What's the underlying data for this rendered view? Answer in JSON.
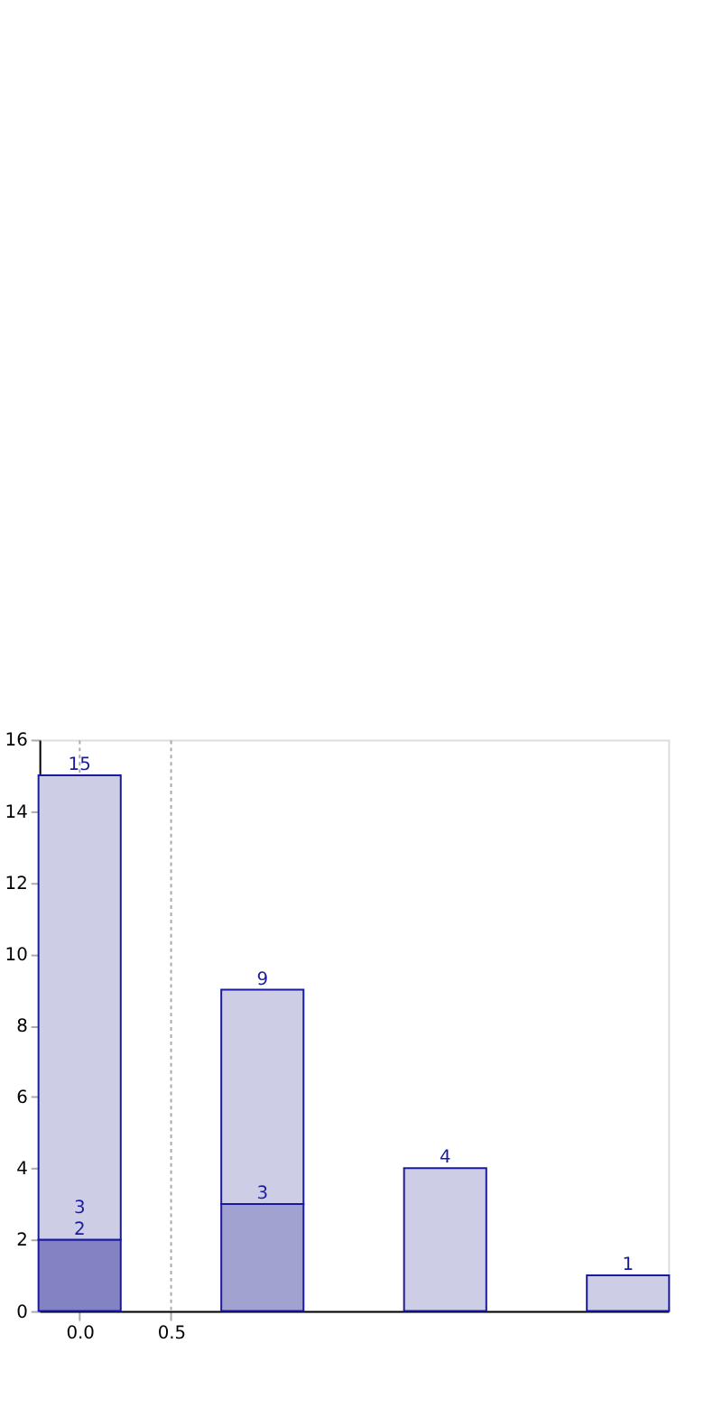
{
  "chart_data": {
    "type": "bar",
    "stacked": true,
    "x": [
      0,
      1,
      2,
      3
    ],
    "series": [
      {
        "colors": [
          "#8383c4",
          "#a2a2d1",
          "#a2a2d1",
          "#a2a2d1"
        ],
        "values": [
          2,
          3,
          null,
          null
        ],
        "value_labels": [
          "2",
          "3",
          null,
          null
        ]
      },
      {
        "color": "#cdcde5",
        "values": [
          13,
          6,
          4,
          1
        ]
      }
    ],
    "totals": [
      "15",
      "9",
      "4",
      "1"
    ],
    "xlim": [
      -0.22,
      3.22
    ],
    "xticks": [
      {
        "value": 0,
        "label": "0.0"
      },
      {
        "value": 0.5,
        "label": "0.5"
      }
    ],
    "ylim": [
      0,
      16
    ],
    "yticks": [
      0,
      2,
      4,
      6,
      8,
      10,
      12,
      14,
      16
    ],
    "grid": "x",
    "annotations": [
      "3"
    ]
  }
}
